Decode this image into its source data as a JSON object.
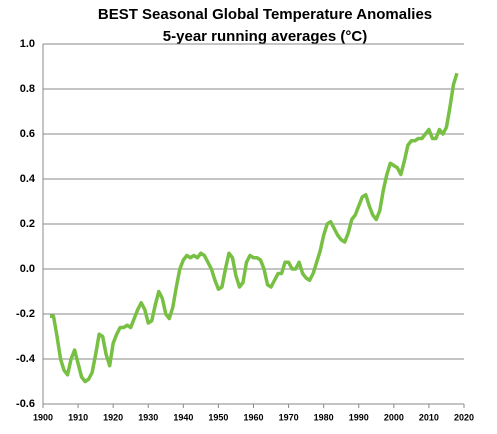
{
  "chart_data": {
    "type": "line",
    "title": "BEST Seasonal Global Temperature Anomalies",
    "subtitle": "5-year running averages (°C)",
    "x": [
      1902,
      1903,
      1904,
      1905,
      1906,
      1907,
      1908,
      1909,
      1910,
      1911,
      1912,
      1913,
      1914,
      1915,
      1916,
      1917,
      1918,
      1919,
      1920,
      1921,
      1922,
      1923,
      1924,
      1925,
      1926,
      1927,
      1928,
      1929,
      1930,
      1931,
      1932,
      1933,
      1934,
      1935,
      1936,
      1937,
      1938,
      1939,
      1940,
      1941,
      1942,
      1943,
      1944,
      1945,
      1946,
      1947,
      1948,
      1949,
      1950,
      1951,
      1952,
      1953,
      1954,
      1955,
      1956,
      1957,
      1958,
      1959,
      1960,
      1961,
      1962,
      1963,
      1964,
      1965,
      1966,
      1967,
      1968,
      1969,
      1970,
      1971,
      1972,
      1973,
      1974,
      1975,
      1976,
      1977,
      1978,
      1979,
      1980,
      1981,
      1982,
      1983,
      1984,
      1985,
      1986,
      1987,
      1988,
      1989,
      1990,
      1991,
      1992,
      1993,
      1994,
      1995,
      1996,
      1997,
      1998,
      1999,
      2000,
      2001,
      2002,
      2003,
      2004,
      2005,
      2006,
      2007,
      2008,
      2009,
      2010,
      2011,
      2012,
      2013,
      2014,
      2015,
      2016,
      2017,
      2018
    ],
    "series": [
      {
        "name": "BEST",
        "color": "#77c043",
        "values": [
          -0.21,
          -0.21,
          -0.3,
          -0.4,
          -0.45,
          -0.47,
          -0.4,
          -0.36,
          -0.42,
          -0.48,
          -0.5,
          -0.49,
          -0.46,
          -0.38,
          -0.29,
          -0.3,
          -0.38,
          -0.43,
          -0.33,
          -0.29,
          -0.26,
          -0.26,
          -0.25,
          -0.26,
          -0.22,
          -0.18,
          -0.15,
          -0.18,
          -0.24,
          -0.23,
          -0.16,
          -0.1,
          -0.13,
          -0.2,
          -0.22,
          -0.17,
          -0.08,
          0.0,
          0.04,
          0.06,
          0.05,
          0.06,
          0.05,
          0.07,
          0.06,
          0.03,
          0.0,
          -0.05,
          -0.09,
          -0.08,
          0.0,
          0.07,
          0.05,
          -0.03,
          -0.08,
          -0.06,
          0.03,
          0.06,
          0.05,
          0.05,
          0.04,
          0.0,
          -0.07,
          -0.08,
          -0.05,
          -0.02,
          -0.02,
          0.03,
          0.03,
          0.0,
          0.0,
          0.03,
          -0.02,
          -0.04,
          -0.05,
          -0.02,
          0.03,
          0.08,
          0.15,
          0.2,
          0.21,
          0.18,
          0.15,
          0.13,
          0.12,
          0.16,
          0.22,
          0.24,
          0.28,
          0.32,
          0.33,
          0.28,
          0.24,
          0.22,
          0.26,
          0.35,
          0.42,
          0.47,
          0.46,
          0.45,
          0.42,
          0.48,
          0.55,
          0.57,
          0.57,
          0.58,
          0.58,
          0.6,
          0.62,
          0.58,
          0.58,
          0.62,
          0.6,
          0.63,
          0.72,
          0.82,
          0.87
        ]
      }
    ],
    "xlim": [
      1900,
      2020
    ],
    "xticks": [
      1900,
      1910,
      1920,
      1930,
      1940,
      1950,
      1960,
      1970,
      1980,
      1990,
      2000,
      2010,
      2020
    ],
    "ylim": [
      -0.6,
      1
    ],
    "yticks": [
      {
        "value": 1,
        "label": "1.0"
      },
      0.8,
      0.6,
      0.4,
      0.2,
      {
        "value": 0,
        "label": "0.0"
      },
      -0.2,
      -0.4,
      -0.6
    ],
    "grid": true
  }
}
